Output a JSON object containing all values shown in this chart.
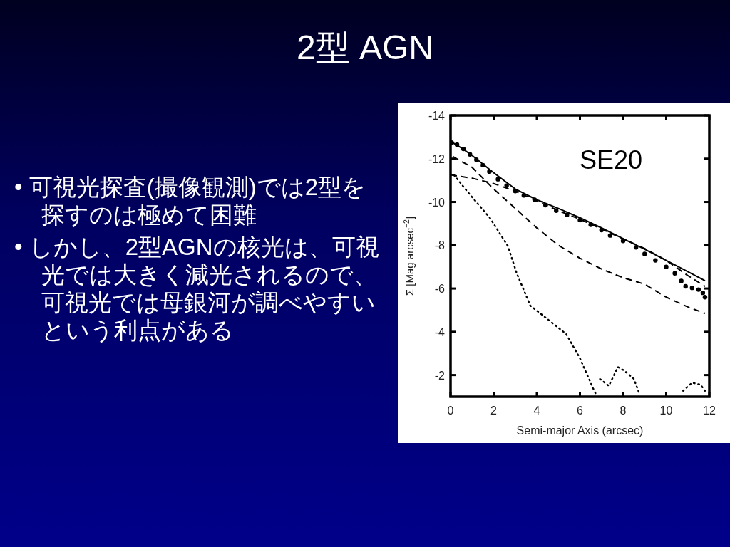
{
  "chart_data": {
    "type": "line",
    "title": "2型 AGN",
    "xlabel": "Semi-major Axis (arcsec)",
    "ylabel": "Σ [Mag arcsec$^{−2}$]",
    "annotations": [
      "SE20",
      "• 可視光探査(撮像観測)では2型を探すのは極めて困難",
      "• しかし、2型AGNの核光は、可視光では大きく減光されるので、可視光では母銀河が調べやすいという利点がある"
    ],
    "xlim": [
      0,
      12
    ],
    "ylim": [
      -1,
      -14
    ],
    "xticks": [
      0,
      2,
      4,
      6,
      8,
      10,
      12
    ],
    "yticks": [
      -14,
      -12,
      -10,
      -8,
      -6,
      -4,
      -2
    ],
    "grid": false,
    "series": [
      {
        "type": "scatter",
        "color": "#000000",
        "marker": "circle",
        "x": [
          0.05,
          0.3,
          0.6,
          0.9,
          1.2,
          1.5,
          1.8,
          2.2,
          2.6,
          3.0,
          3.4,
          3.9,
          4.4,
          4.9,
          5.4,
          6.0,
          6.5,
          7.0,
          7.4,
          8.0,
          8.6,
          9.0,
          9.5,
          10.0,
          10.4,
          10.7,
          10.9,
          11.2,
          11.5,
          11.7,
          11.8
        ],
        "values": [
          -12.74,
          -12.65,
          -12.45,
          -12.2,
          -11.95,
          -11.7,
          -11.4,
          -11.05,
          -10.75,
          -10.5,
          -10.3,
          -10.1,
          -9.85,
          -9.6,
          -9.4,
          -9.16,
          -8.95,
          -8.7,
          -8.45,
          -8.2,
          -7.9,
          -7.6,
          -7.3,
          -7.0,
          -6.7,
          -6.35,
          -6.1,
          -6.03,
          -5.95,
          -5.8,
          -5.6
        ]
      },
      {
        "type": "line",
        "color": "#000000",
        "line_style": "solid",
        "x": [
          0,
          0.5,
          1,
          2,
          3,
          4,
          5,
          6,
          7,
          8,
          9,
          10,
          11,
          11.8
        ],
        "values": [
          -12.8,
          -12.5,
          -12.15,
          -11.35,
          -10.6,
          -10.1,
          -9.7,
          -9.27,
          -8.8,
          -8.3,
          -7.82,
          -7.3,
          -6.78,
          -6.36
        ]
      },
      {
        "type": "line",
        "color": "#000000",
        "line_style": "dashed",
        "x": [
          0,
          1,
          2,
          3,
          4,
          5,
          6,
          7,
          8,
          9,
          10,
          11,
          11.8
        ],
        "values": [
          -11.25,
          -11.1,
          -10.85,
          -10.5,
          -10.05,
          -9.6,
          -9.2,
          -8.75,
          -8.3,
          -7.85,
          -7.3,
          -6.6,
          -6.1
        ]
      },
      {
        "type": "line",
        "color": "#000000",
        "line_style": "dashed",
        "x": [
          0.1,
          1,
          2,
          3,
          4,
          5,
          6,
          7,
          8,
          9,
          10,
          11,
          11.8
        ],
        "values": [
          -12.1,
          -11.6,
          -10.6,
          -9.7,
          -8.8,
          -8.0,
          -7.4,
          -6.9,
          -6.5,
          -6.2,
          -5.6,
          -5.15,
          -4.85
        ]
      },
      {
        "type": "line",
        "color": "#000000",
        "line_style": "dotted",
        "x": [
          0.16,
          0.78,
          1.82,
          2.66,
          3.07,
          3.7,
          4.53,
          5.36,
          5.99,
          6.61,
          6.77,
          6.85,
          6.93,
          7.34,
          7.76,
          8.07,
          8.5,
          8.75,
          9.5,
          10.78,
          11.2,
          11.6,
          11.8
        ],
        "values": [
          -11.25,
          -10.48,
          -9.27,
          -7.96,
          -6.7,
          -5.21,
          -4.56,
          -3.9,
          -2.8,
          -1.39,
          -1.06,
          null,
          -1.82,
          -1.5,
          -2.37,
          -2.2,
          -1.82,
          -1.16,
          null,
          -1.27,
          -1.65,
          -1.55,
          -1.27
        ]
      }
    ]
  }
}
